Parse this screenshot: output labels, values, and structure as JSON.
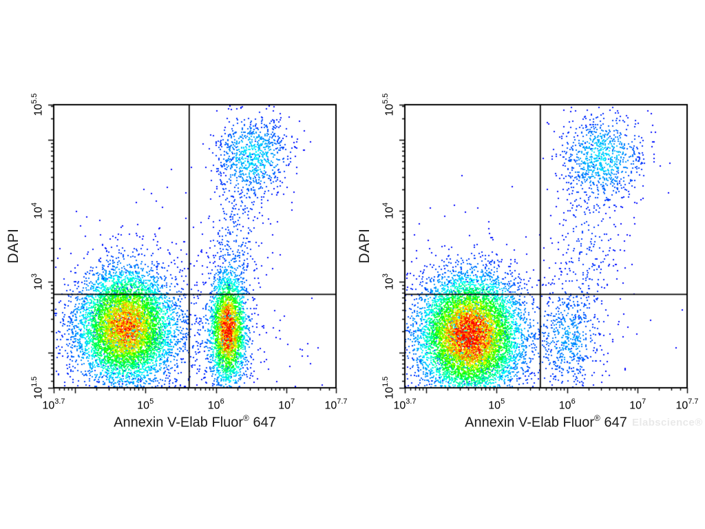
{
  "page": {
    "background": "#ffffff"
  },
  "y_axis_title": "DAPI",
  "x_axis_title": {
    "pre": "Annexin V-Elab Fluor",
    "sup": "®",
    "post": " 647"
  },
  "watermark": {
    "text": "Elabscience®",
    "color": "#e9e9e9"
  },
  "style": {
    "point_size": 2,
    "density_gamma": 0.8,
    "frame_color": "#000000",
    "gate_color": "#000000",
    "tick_color": "#000000",
    "colormap": [
      {
        "t": 0.0,
        "color": "#0000ff"
      },
      {
        "t": 0.28,
        "color": "#00ffff"
      },
      {
        "t": 0.52,
        "color": "#00ff00"
      },
      {
        "t": 0.74,
        "color": "#ffff00"
      },
      {
        "t": 0.87,
        "color": "#ff8000"
      },
      {
        "t": 1.0,
        "color": "#fb0000"
      }
    ]
  },
  "chart_data": [
    {
      "type": "scatter",
      "subtype": "flow-cytometry-density",
      "title": "",
      "xlabel": "Annexin V-Elab Fluor® 647",
      "ylabel": "DAPI",
      "legend": "none",
      "grid": false,
      "seed": 20,
      "x_axis": {
        "scale": "log10",
        "min_exp": 3.7,
        "max_exp": 7.7,
        "base": "10",
        "labeled_ticks": [
          {
            "exp": 3.7,
            "sup": "3.7"
          },
          {
            "exp": 5,
            "sup": "5"
          },
          {
            "exp": 6,
            "sup": "6"
          },
          {
            "exp": 7,
            "sup": "7"
          },
          {
            "exp": 7.7,
            "sup": "7.7"
          }
        ],
        "major_decades": [
          4,
          5,
          6,
          7
        ]
      },
      "y_axis": {
        "scale": "log10",
        "min_exp": 1.5,
        "max_exp": 5.5,
        "base": "10",
        "labeled_ticks": [
          {
            "exp": 5.5,
            "sup": "5.5"
          },
          {
            "exp": 4,
            "sup": "4"
          },
          {
            "exp": 3,
            "sup": "3"
          },
          {
            "exp": 1.5,
            "sup": "1.5"
          }
        ],
        "major_decades": [
          2,
          3,
          4,
          5
        ]
      },
      "quadrant_gate": {
        "x_exp": 5.62,
        "y_exp": 2.82
      },
      "populations": [
        {
          "name": "live-cells",
          "center": [
            4.72,
            2.36
          ],
          "sigma": [
            0.34,
            0.4
          ],
          "count": 6500
        },
        {
          "name": "early-apoptotic",
          "center": [
            6.17,
            2.32
          ],
          "sigma": [
            0.13,
            0.38
          ],
          "count": 2800
        },
        {
          "name": "late-apoptotic-dead",
          "center": [
            6.52,
            4.78
          ],
          "sigma": [
            0.27,
            0.29
          ],
          "count": 800
        },
        {
          "name": "bridge-column",
          "center": [
            6.27,
            3.6
          ],
          "sigma": [
            0.22,
            0.55
          ],
          "count": 320
        },
        {
          "name": "upper-left-scatter",
          "center": [
            4.9,
            3.15
          ],
          "sigma": [
            0.5,
            0.55
          ],
          "count": 110
        },
        {
          "name": "background-scatter",
          "center": [
            5.0,
            2.15
          ],
          "sigma": [
            1.0,
            0.5
          ],
          "count": 700
        }
      ]
    },
    {
      "type": "scatter",
      "subtype": "flow-cytometry-density",
      "title": "",
      "xlabel": "Annexin V-Elab Fluor® 647",
      "ylabel": "DAPI",
      "legend": "none",
      "grid": false,
      "seed": 77,
      "x_axis": {
        "scale": "log10",
        "min_exp": 3.7,
        "max_exp": 7.7,
        "base": "10",
        "labeled_ticks": [
          {
            "exp": 3.7,
            "sup": "3.7"
          },
          {
            "exp": 5,
            "sup": "5"
          },
          {
            "exp": 6,
            "sup": "6"
          },
          {
            "exp": 7,
            "sup": "7"
          },
          {
            "exp": 7.7,
            "sup": "7.7"
          }
        ],
        "major_decades": [
          4,
          5,
          6,
          7
        ]
      },
      "y_axis": {
        "scale": "log10",
        "min_exp": 1.5,
        "max_exp": 5.5,
        "base": "10",
        "labeled_ticks": [
          {
            "exp": 5.5,
            "sup": "5.5"
          },
          {
            "exp": 4,
            "sup": "4"
          },
          {
            "exp": 3,
            "sup": "3"
          },
          {
            "exp": 1.5,
            "sup": "1.5"
          }
        ],
        "major_decades": [
          2,
          3,
          4,
          5
        ]
      },
      "quadrant_gate": {
        "x_exp": 5.62,
        "y_exp": 2.82
      },
      "populations": [
        {
          "name": "live-cells",
          "center": [
            4.62,
            2.24
          ],
          "sigma": [
            0.36,
            0.42
          ],
          "count": 8000
        },
        {
          "name": "early-apoptotic",
          "center": [
            6.02,
            2.2
          ],
          "sigma": [
            0.22,
            0.38
          ],
          "count": 480
        },
        {
          "name": "late-apoptotic-dead",
          "center": [
            6.5,
            4.76
          ],
          "sigma": [
            0.3,
            0.3
          ],
          "count": 820
        },
        {
          "name": "bridge-column",
          "center": [
            6.3,
            3.5
          ],
          "sigma": [
            0.25,
            0.6
          ],
          "count": 270
        },
        {
          "name": "upper-left-scatter",
          "center": [
            4.75,
            3.2
          ],
          "sigma": [
            0.5,
            0.5
          ],
          "count": 65
        },
        {
          "name": "background-scatter",
          "center": [
            4.9,
            2.1
          ],
          "sigma": [
            0.9,
            0.5
          ],
          "count": 420
        }
      ]
    }
  ]
}
